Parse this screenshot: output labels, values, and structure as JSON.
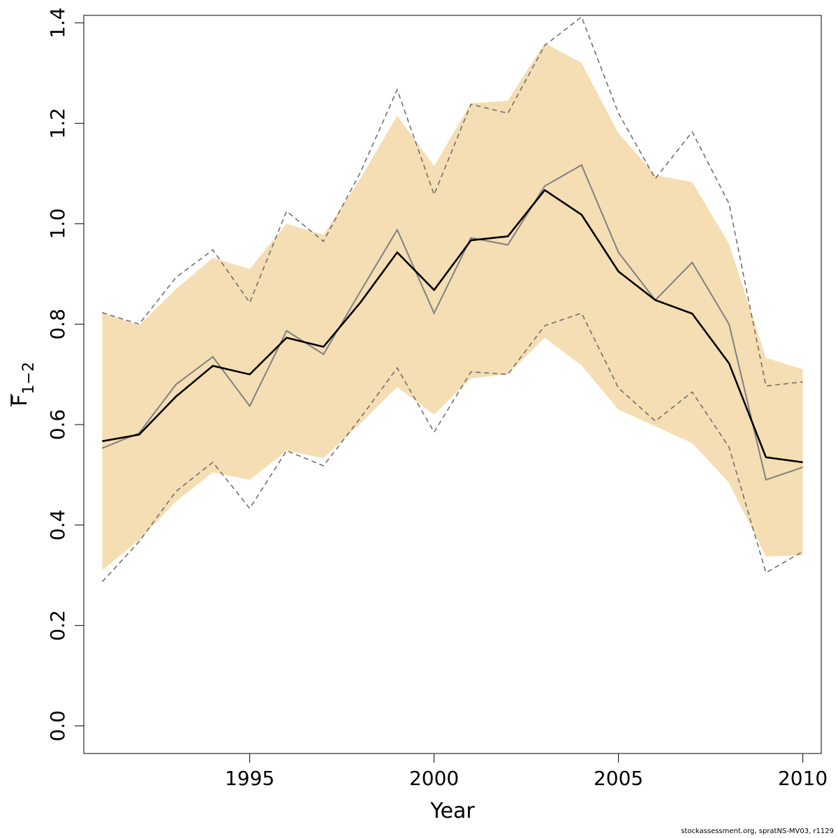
{
  "chart_data": {
    "type": "line",
    "xlabel": "Year",
    "ylabel_main": "F",
    "ylabel_sub": "1−2",
    "xlim": [
      1990.5,
      2010.5
    ],
    "ylim": [
      -0.055,
      1.415
    ],
    "x_ticks": [
      1995,
      2000,
      2005,
      2010
    ],
    "y_ticks": [
      0.0,
      0.2,
      0.4,
      0.6,
      0.8,
      1.0,
      1.2,
      1.4
    ],
    "y_tick_labels": [
      "0.0",
      "0.2",
      "0.4",
      "0.6",
      "0.8",
      "1.0",
      "1.2",
      "1.4"
    ],
    "x_tick_labels": [
      "1995",
      "2000",
      "2005",
      "2010"
    ],
    "grid": false,
    "colors": {
      "band": "#f5deb3",
      "estimate": "#000000",
      "comparison": "#808080",
      "comparison_ci": "#6f6f6f",
      "axis": "#000000"
    },
    "years": [
      1991,
      1992,
      1993,
      1994,
      1995,
      1996,
      1997,
      1998,
      1999,
      2000,
      2001,
      2002,
      2003,
      2004,
      2005,
      2006,
      2007,
      2008,
      2009,
      2010
    ],
    "series": [
      {
        "role": "band_upper",
        "values": [
          0.823,
          0.798,
          0.87,
          0.932,
          0.91,
          1.0,
          0.978,
          1.09,
          1.215,
          1.115,
          1.24,
          1.245,
          1.36,
          1.32,
          1.18,
          1.097,
          1.083,
          0.96,
          0.733,
          0.71
        ]
      },
      {
        "role": "band_lower",
        "values": [
          0.31,
          0.37,
          0.447,
          0.505,
          0.49,
          0.548,
          0.533,
          0.602,
          0.675,
          0.62,
          0.692,
          0.7,
          0.773,
          0.718,
          0.63,
          0.597,
          0.563,
          0.484,
          0.337,
          0.34
        ]
      },
      {
        "role": "estimate",
        "values": [
          0.567,
          0.58,
          0.656,
          0.717,
          0.7,
          0.773,
          0.755,
          0.843,
          0.943,
          0.868,
          0.967,
          0.975,
          1.067,
          1.018,
          0.905,
          0.848,
          0.821,
          0.722,
          0.535,
          0.525
        ]
      },
      {
        "role": "comparison",
        "values": [
          0.553,
          0.583,
          0.68,
          0.735,
          0.637,
          0.787,
          0.74,
          0.865,
          0.988,
          0.822,
          0.972,
          0.958,
          1.075,
          1.117,
          0.943,
          0.848,
          0.923,
          0.8,
          0.49,
          0.515
        ]
      },
      {
        "role": "comparison_upper",
        "values": [
          0.823,
          0.8,
          0.893,
          0.948,
          0.843,
          1.025,
          0.965,
          1.102,
          1.267,
          1.058,
          1.238,
          1.22,
          1.355,
          1.412,
          1.22,
          1.09,
          1.183,
          1.04,
          0.677,
          0.685
        ]
      },
      {
        "role": "comparison_lower",
        "values": [
          0.287,
          0.367,
          0.467,
          0.525,
          0.433,
          0.548,
          0.518,
          0.613,
          0.713,
          0.585,
          0.705,
          0.7,
          0.797,
          0.822,
          0.673,
          0.607,
          0.665,
          0.555,
          0.305,
          0.347
        ]
      }
    ]
  },
  "footer": {
    "credit": "stockassessment.org, spratNS-MV03, r1129"
  }
}
